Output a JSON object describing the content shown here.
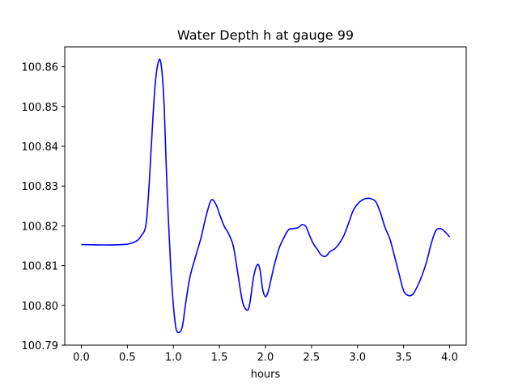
{
  "chart_data": {
    "type": "line",
    "title": "Water Depth h at gauge 99",
    "xlabel": "hours",
    "ylabel": "",
    "xlim": [
      -0.18,
      4.18
    ],
    "ylim": [
      100.79,
      100.865
    ],
    "grid": false,
    "legend": "none",
    "x_ticks": [
      0.0,
      0.5,
      1.0,
      1.5,
      2.0,
      2.5,
      3.0,
      3.5,
      4.0
    ],
    "x_tick_labels": [
      "0.0",
      "0.5",
      "1.0",
      "1.5",
      "2.0",
      "2.5",
      "3.0",
      "3.5",
      "4.0"
    ],
    "y_ticks": [
      100.79,
      100.8,
      100.81,
      100.82,
      100.83,
      100.84,
      100.85,
      100.86
    ],
    "y_tick_labels": [
      "100.79",
      "100.80",
      "100.81",
      "100.82",
      "100.83",
      "100.84",
      "100.85",
      "100.86"
    ],
    "series": [
      {
        "color": "#0000ff",
        "x": [
          0.0,
          0.3,
          0.5,
          0.6,
          0.65,
          0.7,
          0.73,
          0.76,
          0.8,
          0.84,
          0.87,
          0.9,
          0.93,
          0.97,
          1.0,
          1.03,
          1.07,
          1.1,
          1.13,
          1.17,
          1.2,
          1.25,
          1.3,
          1.35,
          1.4,
          1.43,
          1.47,
          1.5,
          1.55,
          1.6,
          1.65,
          1.7,
          1.75,
          1.8,
          1.83,
          1.87,
          1.91,
          1.94,
          1.97,
          2.0,
          2.03,
          2.06,
          2.1,
          2.15,
          2.2,
          2.25,
          2.3,
          2.35,
          2.4,
          2.44,
          2.48,
          2.52,
          2.56,
          2.6,
          2.65,
          2.7,
          2.75,
          2.8,
          2.85,
          2.9,
          2.95,
          3.0,
          3.05,
          3.1,
          3.15,
          3.2,
          3.25,
          3.3,
          3.35,
          3.4,
          3.45,
          3.5,
          3.55,
          3.6,
          3.65,
          3.7,
          3.75,
          3.8,
          3.85,
          3.9,
          3.95,
          4.0
        ],
        "y": [
          100.8153,
          100.8152,
          100.8154,
          100.8162,
          100.8175,
          100.82,
          100.828,
          100.84,
          100.855,
          100.8615,
          100.86,
          100.85,
          100.83,
          100.81,
          100.8,
          100.794,
          100.7933,
          100.795,
          100.8,
          100.806,
          100.809,
          100.813,
          100.817,
          100.822,
          100.826,
          100.8265,
          100.825,
          100.823,
          100.82,
          100.818,
          100.815,
          100.808,
          100.801,
          100.7988,
          100.8005,
          100.807,
          100.8102,
          100.809,
          100.804,
          100.8022,
          100.8035,
          100.8065,
          100.8105,
          100.8145,
          100.817,
          100.819,
          100.8193,
          100.8195,
          100.8203,
          100.8198,
          100.8175,
          100.8155,
          100.8142,
          100.8128,
          100.8123,
          100.8135,
          100.8142,
          100.8155,
          100.8175,
          100.8205,
          100.8237,
          100.8255,
          100.8265,
          100.8269,
          100.8268,
          100.826,
          100.8232,
          100.8195,
          100.8168,
          100.8125,
          100.808,
          100.8037,
          100.8025,
          100.8028,
          100.8048,
          100.8075,
          100.811,
          100.8155,
          100.8188,
          100.8193,
          100.8185,
          100.8172
        ]
      }
    ]
  }
}
